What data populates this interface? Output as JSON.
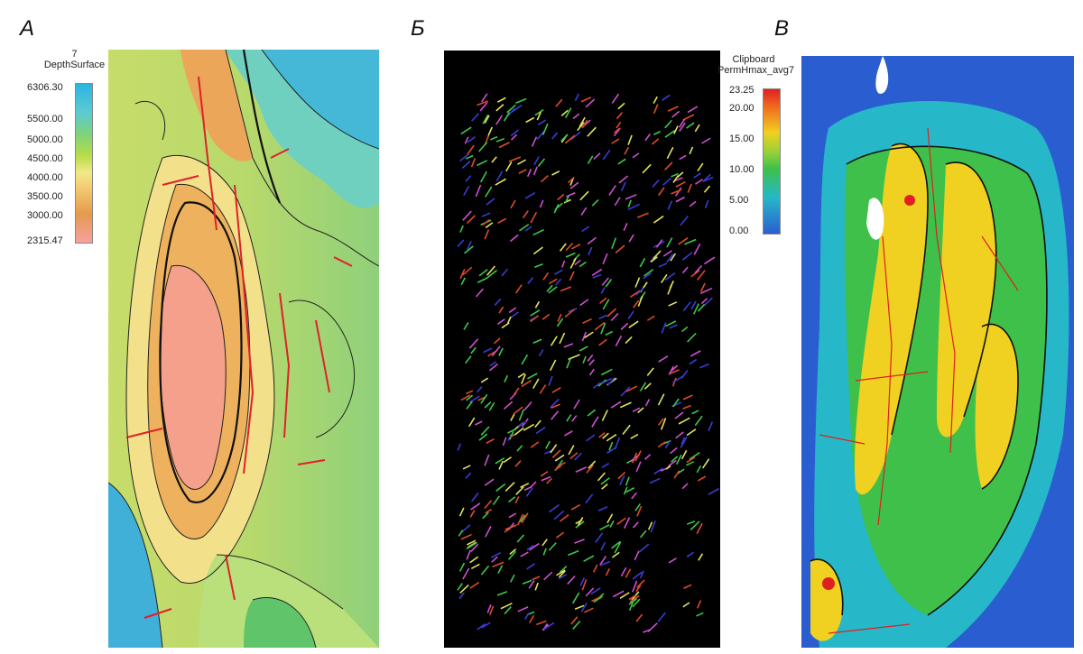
{
  "panels": [
    {
      "letter": "А",
      "legend": {
        "title_line1": "7",
        "title_line2": "DepthSurface",
        "ticks": [
          "6306.30",
          "5500.00",
          "5000.00",
          "4500.00",
          "4000.00",
          "3500.00",
          "3000.00",
          "2315.47"
        ],
        "colors": [
          "#2ab5e0",
          "#4fc9d0",
          "#7fd37a",
          "#b6dc45",
          "#f3e88a",
          "#f2c36a",
          "#e59a4e",
          "#f7a0a0"
        ]
      }
    },
    {
      "letter": "Б",
      "background": "#000000",
      "stick_colors": [
        "#3b3bd6",
        "#e3e35a",
        "#d04fd0",
        "#3cc84a",
        "#e04a2a"
      ]
    },
    {
      "letter": "В",
      "legend": {
        "title_line1": "Clipboard",
        "title_line2": "PermHmax_avg7",
        "ticks": [
          "23.25",
          "20.00",
          "15.00",
          "10.00",
          "5.00",
          "0.00"
        ],
        "colors": [
          "#e02020",
          "#f0d020",
          "#3ec04a",
          "#26b8c8",
          "#2a5ed0"
        ]
      }
    }
  ]
}
